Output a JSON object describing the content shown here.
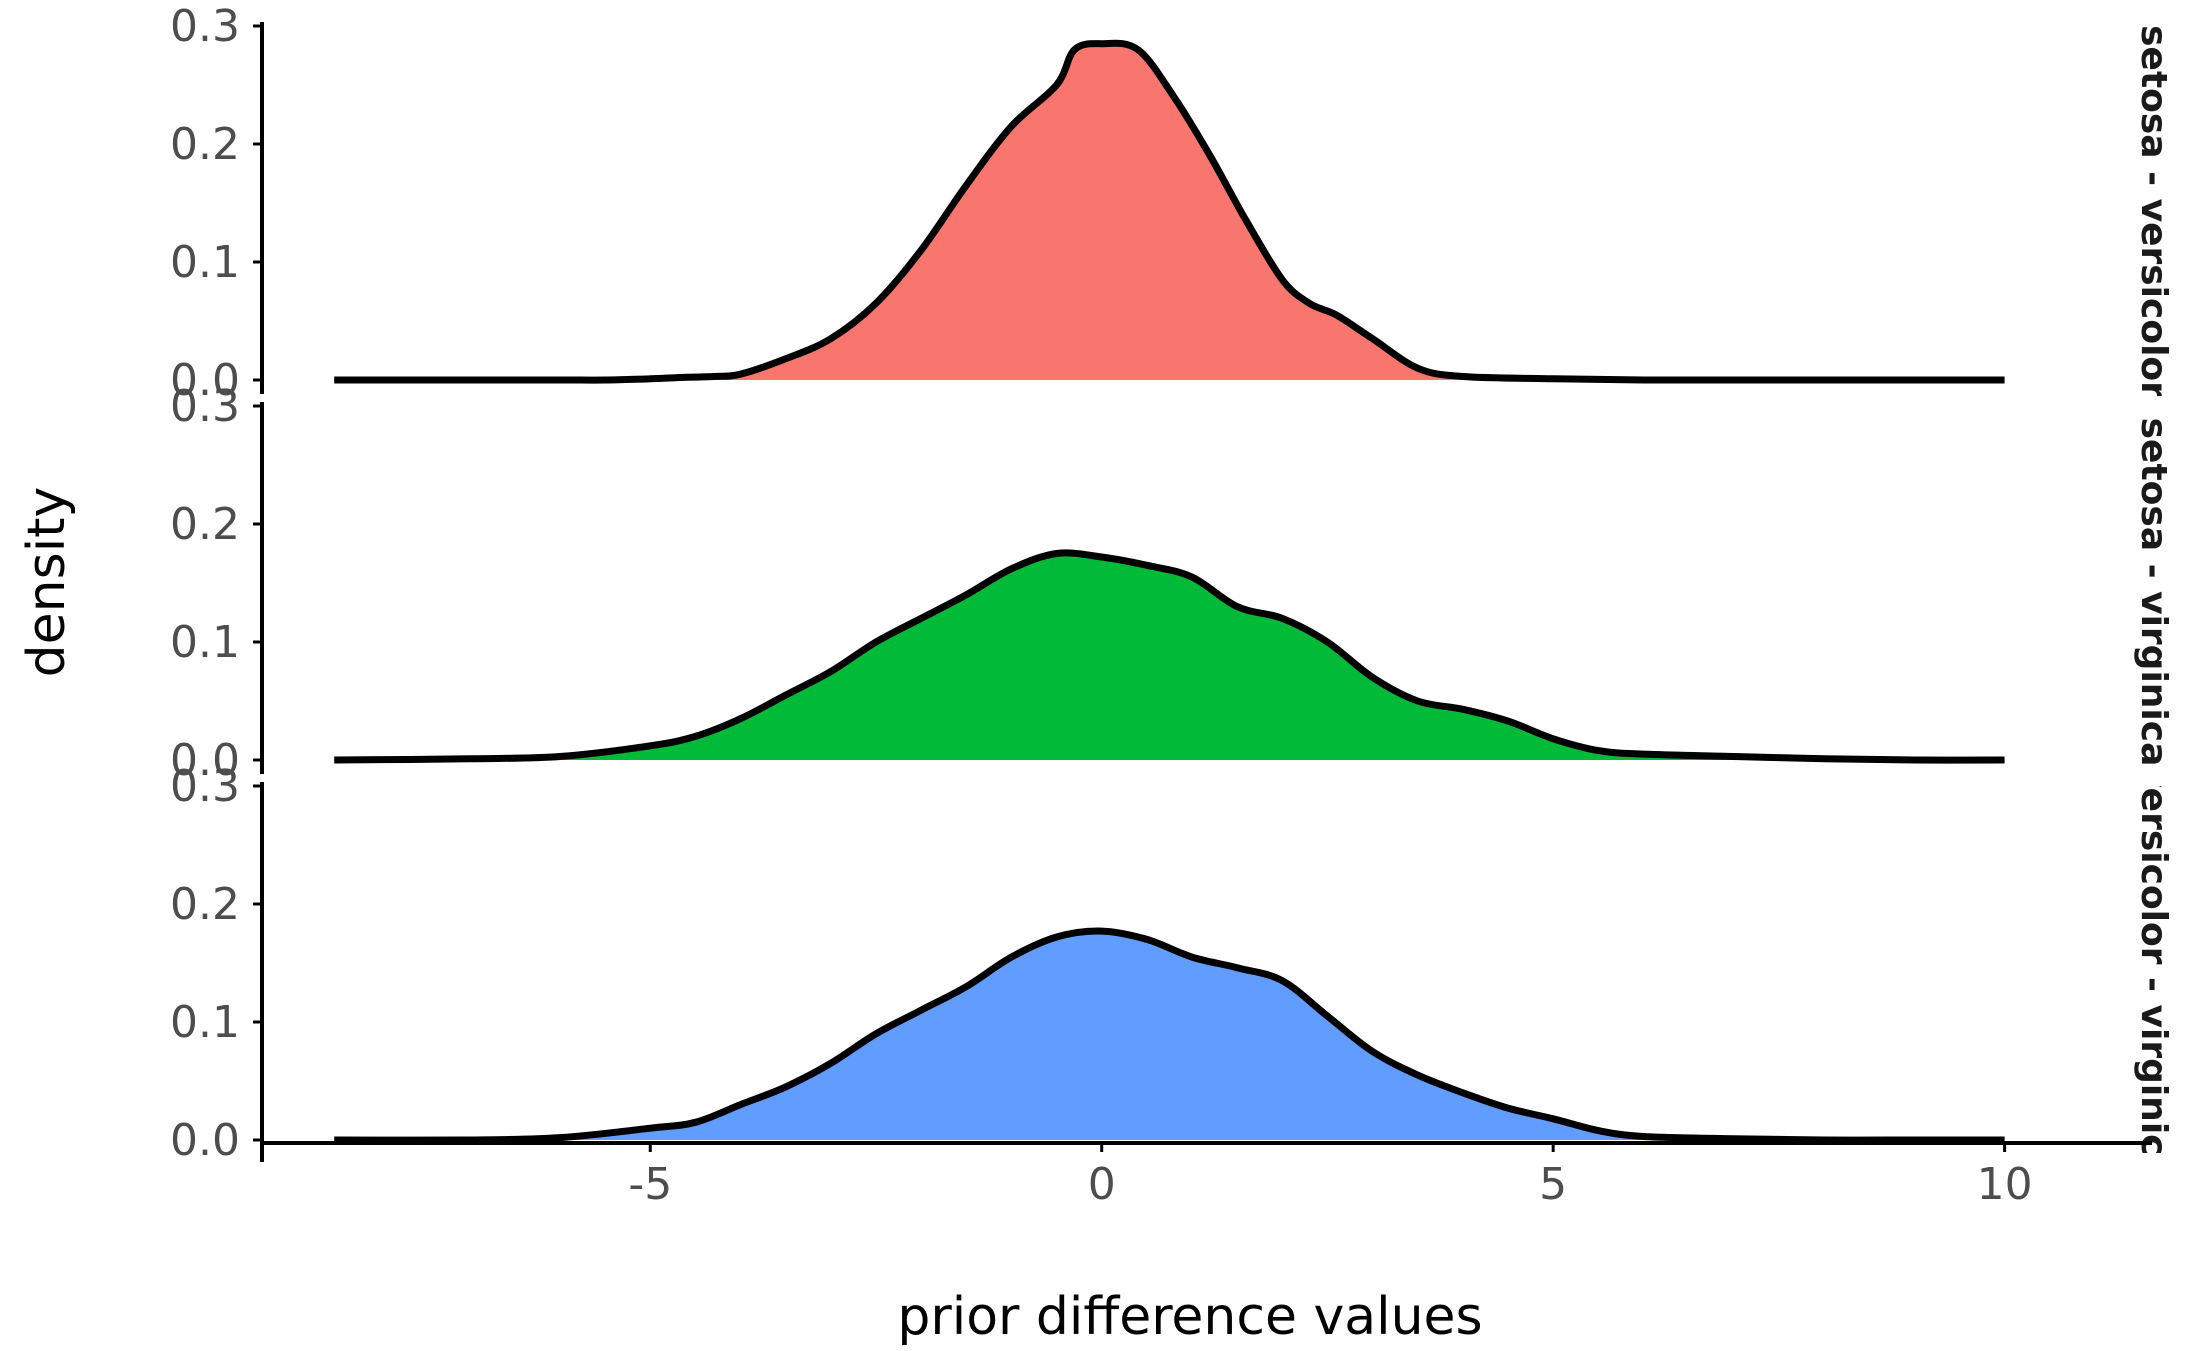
{
  "chart_data": {
    "type": "area",
    "xlabel": "prior difference values",
    "ylabel": "density",
    "xlim": [
      -9.3,
      11.3
    ],
    "ylim": [
      0,
      0.3
    ],
    "x_ticks": [
      -5,
      0,
      5,
      10
    ],
    "x_tick_labels": [
      "-5",
      "0",
      "5",
      "10"
    ],
    "y_ticks": [
      0,
      0.1,
      0.2,
      0.3
    ],
    "y_tick_labels": [
      "0.0",
      "0.1",
      "0.2",
      "0.3"
    ],
    "grid": false,
    "legend": "none",
    "panels": [
      {
        "name": "setosa - versicolor",
        "color": "#F8766D",
        "x": [
          -8.5,
          -7,
          -6,
          -5.5,
          -5,
          -4.7,
          -4.3,
          -4,
          -3.5,
          -3,
          -2.5,
          -2,
          -1.5,
          -1,
          -0.5,
          -0.3,
          0,
          0.4,
          0.8,
          1.2,
          1.6,
          2,
          2.3,
          2.6,
          3,
          3.5,
          4,
          5,
          6,
          7,
          8,
          9,
          10
        ],
        "y": [
          0,
          0,
          0,
          0,
          0.001,
          0.002,
          0.003,
          0.005,
          0.018,
          0.035,
          0.065,
          0.11,
          0.165,
          0.215,
          0.25,
          0.28,
          0.285,
          0.28,
          0.24,
          0.19,
          0.135,
          0.085,
          0.065,
          0.055,
          0.035,
          0.01,
          0.003,
          0.001,
          0,
          0,
          0,
          0,
          0
        ]
      },
      {
        "name": "setosa - virginica",
        "color": "#00BA38",
        "x": [
          -8.5,
          -7,
          -6,
          -5,
          -4.5,
          -4,
          -3.5,
          -3,
          -2.5,
          -2,
          -1.5,
          -1,
          -0.5,
          0,
          0.5,
          1,
          1.5,
          2,
          2.5,
          3,
          3.5,
          4,
          4.5,
          5,
          5.5,
          6,
          7,
          8,
          9,
          10
        ],
        "y": [
          0,
          0.001,
          0.003,
          0.012,
          0.02,
          0.035,
          0.055,
          0.075,
          0.1,
          0.12,
          0.14,
          0.162,
          0.175,
          0.172,
          0.165,
          0.155,
          0.13,
          0.12,
          0.1,
          0.07,
          0.05,
          0.043,
          0.033,
          0.018,
          0.008,
          0.005,
          0.003,
          0.001,
          0,
          0
        ]
      },
      {
        "name": "versicolor - virginica",
        "color": "#619CFF",
        "x": [
          -8.5,
          -7,
          -6,
          -5,
          -4.5,
          -4,
          -3.5,
          -3,
          -2.5,
          -2,
          -1.5,
          -1,
          -0.5,
          0,
          0.5,
          1,
          1.5,
          2,
          2.5,
          3,
          3.5,
          4,
          4.5,
          5,
          5.5,
          6,
          7,
          8,
          9,
          10
        ],
        "y": [
          0,
          0,
          0.002,
          0.01,
          0.015,
          0.03,
          0.045,
          0.065,
          0.09,
          0.11,
          0.13,
          0.155,
          0.172,
          0.177,
          0.17,
          0.155,
          0.146,
          0.135,
          0.105,
          0.075,
          0.055,
          0.04,
          0.027,
          0.018,
          0.008,
          0.003,
          0.001,
          0,
          0,
          0
        ]
      }
    ]
  }
}
